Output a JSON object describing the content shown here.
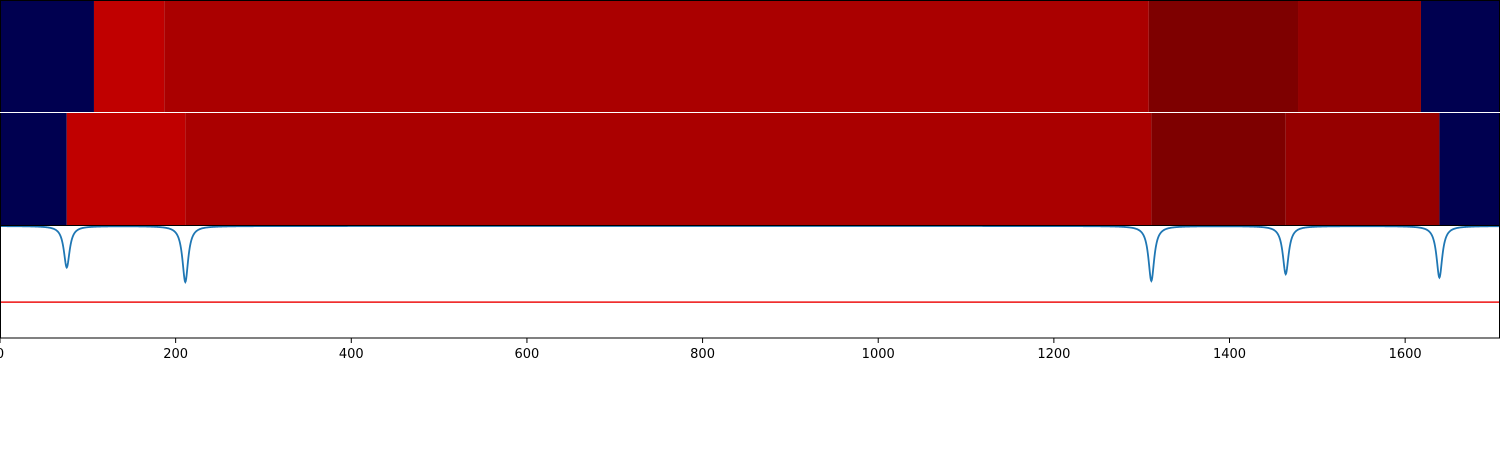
{
  "chart_data": [
    {
      "type": "heatmap",
      "xlim": [
        0,
        1708
      ],
      "colors": {
        "navy": "#000050",
        "red_bright": "#c00000",
        "red_mid": "#aa0000",
        "red_dark": "#7e0000",
        "red_dim": "#960000"
      },
      "segments": [
        {
          "start": 0,
          "end": 107,
          "color": "#000050"
        },
        {
          "start": 107,
          "end": 187,
          "color": "#c00000"
        },
        {
          "start": 187,
          "end": 1308,
          "color": "#aa0000"
        },
        {
          "start": 1308,
          "end": 1478,
          "color": "#7e0000"
        },
        {
          "start": 1478,
          "end": 1618,
          "color": "#960000"
        },
        {
          "start": 1618,
          "end": 1708,
          "color": "#000050"
        }
      ]
    },
    {
      "type": "heatmap",
      "xlim": [
        0,
        1708
      ],
      "segments": [
        {
          "start": 0,
          "end": 76,
          "color": "#000050"
        },
        {
          "start": 76,
          "end": 211,
          "color": "#c00000"
        },
        {
          "start": 211,
          "end": 1311,
          "color": "#aa0000"
        },
        {
          "start": 1311,
          "end": 1464,
          "color": "#7e0000"
        },
        {
          "start": 1464,
          "end": 1639,
          "color": "#960000"
        },
        {
          "start": 1639,
          "end": 1708,
          "color": "#000050"
        }
      ]
    },
    {
      "type": "line",
      "xlim": [
        0,
        1708
      ],
      "ylim": [
        -1.0,
        0.0
      ],
      "threshold": -0.68,
      "threshold_color": "#ee1111",
      "line_color": "#1f77b4",
      "dips": [
        {
          "x": 76,
          "depth": -0.37,
          "width": 4
        },
        {
          "x": 211,
          "depth": -0.5,
          "width": 4
        },
        {
          "x": 1311,
          "depth": -0.49,
          "width": 4
        },
        {
          "x": 1464,
          "depth": -0.43,
          "width": 4
        },
        {
          "x": 1639,
          "depth": -0.46,
          "width": 4
        }
      ],
      "xticks": [
        0,
        200,
        400,
        600,
        800,
        1000,
        1200,
        1400,
        1600
      ],
      "xtick_labels": [
        "0",
        "200",
        "400",
        "600",
        "800",
        "1000",
        "1200",
        "1400",
        "1600"
      ]
    }
  ]
}
